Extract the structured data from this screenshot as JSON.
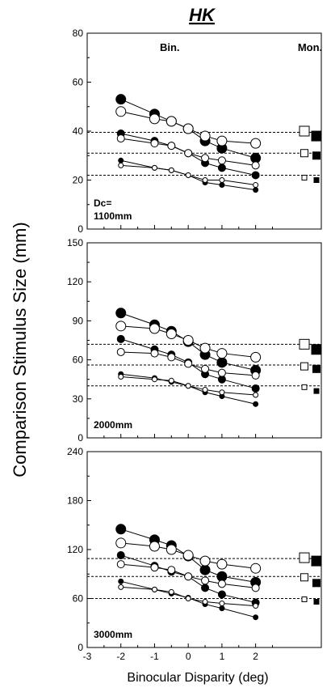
{
  "title": "HK",
  "ylabel": "Comparison Stimulus Size (mm)",
  "xlabel": "Binocular Disparity (deg)",
  "header_bin": "Bin.",
  "header_mon": "Mon.",
  "xticks": [
    "-3",
    "-2",
    "-1",
    "0",
    "1",
    "2"
  ],
  "chart_data": [
    {
      "type": "line",
      "label": "Dc=\n1100mm",
      "ylim": [
        0,
        80
      ],
      "yticks": [
        "0",
        "20",
        "40",
        "60",
        "80"
      ],
      "x": [
        -2,
        -1,
        -0.5,
        0,
        0.5,
        1,
        2
      ],
      "reference_lines": [
        39.5,
        31,
        22
      ],
      "series": [
        {
          "marker": "filled",
          "size": "large",
          "values": [
            53,
            47,
            44,
            41,
            36,
            33,
            29
          ]
        },
        {
          "marker": "open",
          "size": "large",
          "values": [
            48,
            45,
            44,
            41,
            38,
            36,
            35
          ]
        },
        {
          "marker": "filled",
          "size": "medium",
          "values": [
            39,
            36,
            34,
            31,
            27,
            25,
            22
          ]
        },
        {
          "marker": "open",
          "size": "medium",
          "values": [
            37,
            35,
            34,
            31,
            29,
            28,
            26
          ]
        },
        {
          "marker": "filled",
          "size": "small",
          "values": [
            28,
            25,
            24,
            22,
            19,
            18,
            16
          ]
        },
        {
          "marker": "open",
          "size": "small",
          "values": [
            26,
            25,
            24,
            22,
            20,
            20,
            18
          ]
        }
      ],
      "monocular": [
        {
          "marker": "open",
          "size": "large",
          "value": 40
        },
        {
          "marker": "filled",
          "size": "large",
          "value": 38
        },
        {
          "marker": "open",
          "size": "medium",
          "value": 31
        },
        {
          "marker": "filled",
          "size": "medium",
          "value": 30
        },
        {
          "marker": "open",
          "size": "small",
          "value": 21
        },
        {
          "marker": "filled",
          "size": "small",
          "value": 20
        }
      ]
    },
    {
      "type": "line",
      "label": "2000mm",
      "ylim": [
        0,
        150
      ],
      "yticks": [
        "0",
        "30",
        "60",
        "90",
        "120",
        "150"
      ],
      "x": [
        -2,
        -1,
        -0.5,
        0,
        0.5,
        1,
        2
      ],
      "reference_lines": [
        72,
        56,
        40
      ],
      "series": [
        {
          "marker": "filled",
          "size": "large",
          "values": [
            96,
            87,
            82,
            74,
            64,
            58,
            52
          ]
        },
        {
          "marker": "open",
          "size": "large",
          "values": [
            86,
            84,
            80,
            75,
            69,
            65,
            62
          ]
        },
        {
          "marker": "filled",
          "size": "medium",
          "values": [
            76,
            68,
            64,
            58,
            49,
            45,
            38
          ]
        },
        {
          "marker": "open",
          "size": "medium",
          "values": [
            66,
            65,
            62,
            57,
            53,
            50,
            48
          ]
        },
        {
          "marker": "filled",
          "size": "small",
          "values": [
            49,
            46,
            43,
            40,
            35,
            32,
            26
          ]
        },
        {
          "marker": "open",
          "size": "small",
          "values": [
            47,
            45,
            44,
            40,
            37,
            35,
            33
          ]
        }
      ],
      "monocular": [
        {
          "marker": "open",
          "size": "large",
          "value": 72
        },
        {
          "marker": "filled",
          "size": "large",
          "value": 68
        },
        {
          "marker": "open",
          "size": "medium",
          "value": 55
        },
        {
          "marker": "filled",
          "size": "medium",
          "value": 53
        },
        {
          "marker": "open",
          "size": "small",
          "value": 39
        },
        {
          "marker": "filled",
          "size": "small",
          "value": 36
        }
      ]
    },
    {
      "type": "line",
      "label": "3000mm",
      "ylim": [
        0,
        240
      ],
      "yticks": [
        "0",
        "60",
        "120",
        "180",
        "240"
      ],
      "x": [
        -2,
        -1,
        -0.5,
        0,
        0.5,
        1,
        2
      ],
      "reference_lines": [
        109,
        87,
        60
      ],
      "series": [
        {
          "marker": "filled",
          "size": "large",
          "values": [
            145,
            132,
            125,
            112,
            95,
            87,
            80
          ]
        },
        {
          "marker": "open",
          "size": "large",
          "values": [
            128,
            124,
            120,
            113,
            106,
            102,
            97
          ]
        },
        {
          "marker": "filled",
          "size": "medium",
          "values": [
            113,
            100,
            93,
            87,
            73,
            65,
            55
          ]
        },
        {
          "marker": "open",
          "size": "medium",
          "values": [
            102,
            98,
            95,
            87,
            82,
            78,
            73
          ]
        },
        {
          "marker": "filled",
          "size": "small",
          "values": [
            81,
            71,
            66,
            61,
            53,
            48,
            37
          ]
        },
        {
          "marker": "open",
          "size": "small",
          "values": [
            74,
            71,
            68,
            60,
            56,
            54,
            51
          ]
        }
      ],
      "monocular": [
        {
          "marker": "open",
          "size": "large",
          "value": 110
        },
        {
          "marker": "filled",
          "size": "large",
          "value": 106
        },
        {
          "marker": "open",
          "size": "medium",
          "value": 86
        },
        {
          "marker": "filled",
          "size": "medium",
          "value": 79
        },
        {
          "marker": "open",
          "size": "small",
          "value": 59
        },
        {
          "marker": "filled",
          "size": "small",
          "value": 56
        }
      ]
    }
  ]
}
